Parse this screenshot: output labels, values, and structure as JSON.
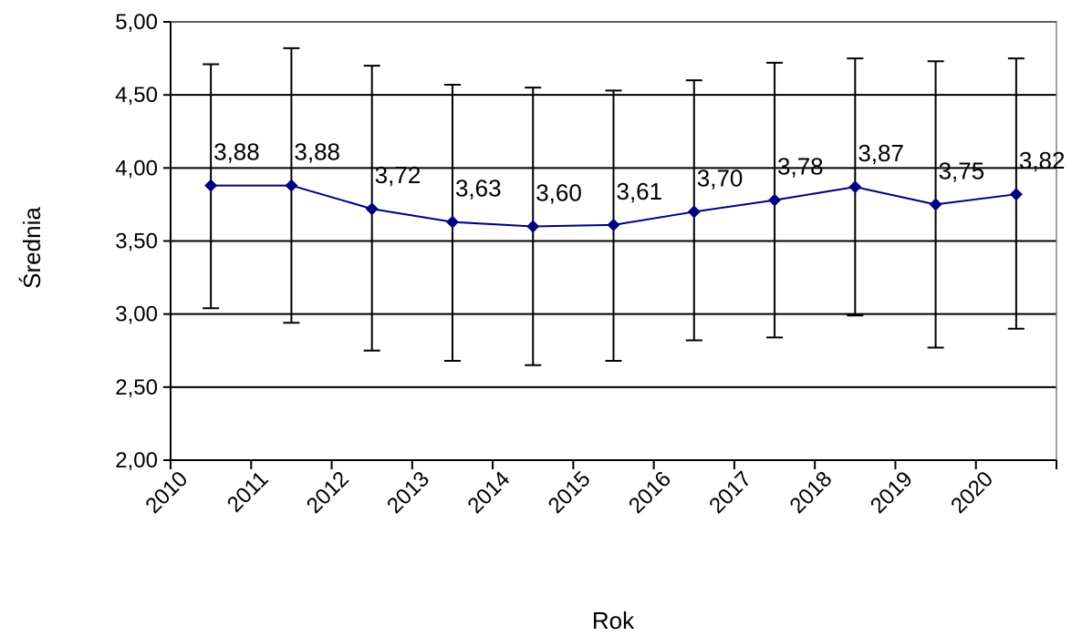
{
  "chart_data": {
    "type": "line",
    "xlabel": "Rok",
    "ylabel": "Średnia",
    "ylim": [
      2.0,
      5.0
    ],
    "yticks": [
      "2,00",
      "2,50",
      "3,00",
      "3,50",
      "4,00",
      "4,50",
      "5,00"
    ],
    "grid": "horizontal",
    "categories": [
      "2010",
      "2011",
      "2012",
      "2013",
      "2014",
      "2015",
      "2016",
      "2017",
      "2018",
      "2019",
      "2020"
    ],
    "series": [
      {
        "values": [
          3.88,
          3.88,
          3.72,
          3.63,
          3.6,
          3.61,
          3.7,
          3.78,
          3.87,
          3.75,
          3.82
        ],
        "labels": [
          "3,88",
          "3,88",
          "3,72",
          "3,63",
          "3,60",
          "3,61",
          "3,70",
          "3,78",
          "3,87",
          "3,75",
          "3,82"
        ],
        "error_low": [
          3.04,
          2.94,
          2.75,
          2.68,
          2.65,
          2.68,
          2.82,
          2.84,
          2.99,
          2.77,
          2.9
        ],
        "error_high": [
          4.71,
          4.82,
          4.7,
          4.57,
          4.55,
          4.53,
          4.6,
          4.72,
          4.75,
          4.73,
          4.75
        ],
        "color": "#000080"
      }
    ]
  }
}
